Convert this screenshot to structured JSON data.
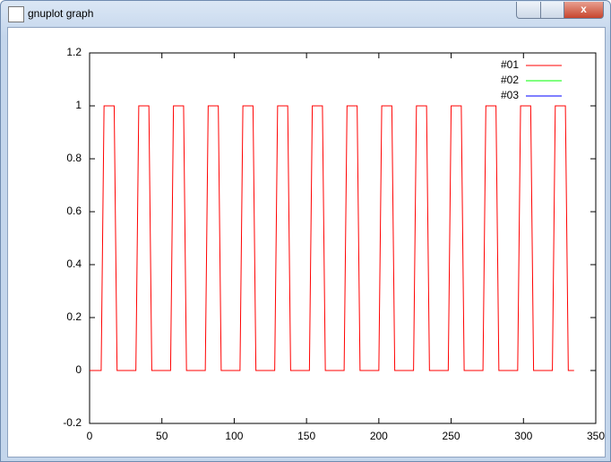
{
  "window_title": "gnuplot graph",
  "chart_data": {
    "type": "line",
    "x": [
      0,
      8,
      9,
      10,
      17,
      18,
      19,
      32,
      33,
      34,
      41,
      42,
      43,
      56,
      57,
      58,
      65,
      66,
      67,
      80,
      81,
      82,
      89,
      90,
      91,
      104,
      105,
      106,
      113,
      114,
      115,
      128,
      129,
      130,
      137,
      138,
      139,
      152,
      153,
      154,
      161,
      162,
      163,
      176,
      177,
      178,
      185,
      186,
      187,
      200,
      201,
      202,
      209,
      210,
      211,
      224,
      225,
      226,
      233,
      234,
      235,
      248,
      249,
      250,
      257,
      258,
      259,
      272,
      273,
      274,
      281,
      282,
      283,
      296,
      297,
      298,
      305,
      306,
      307,
      320,
      321,
      322,
      329,
      330,
      331,
      335
    ],
    "series": [
      {
        "name": "#01",
        "color": "#ff0000",
        "values": [
          0,
          0,
          0.5,
          1,
          1,
          0.5,
          0,
          0,
          0.5,
          1,
          1,
          0.5,
          0,
          0,
          0.5,
          1,
          1,
          0.5,
          0,
          0,
          0.5,
          1,
          1,
          0.5,
          0,
          0,
          0.5,
          1,
          1,
          0.5,
          0,
          0,
          0.5,
          1,
          1,
          0.5,
          0,
          0,
          0.5,
          1,
          1,
          0.5,
          0,
          0,
          0.5,
          1,
          1,
          0.5,
          0,
          0,
          0.5,
          1,
          1,
          0.5,
          0,
          0,
          0.5,
          1,
          1,
          0.5,
          0,
          0,
          0.5,
          1,
          1,
          0.5,
          0,
          0,
          0.5,
          1,
          1,
          0.5,
          0,
          0,
          0.5,
          1,
          1,
          0.5,
          0,
          0,
          0.5,
          1,
          1,
          0.5,
          0,
          0
        ]
      },
      {
        "name": "#02",
        "color": "#00ff00",
        "values": [
          null,
          null,
          null,
          null,
          null,
          null,
          null,
          null,
          null,
          null,
          null,
          null,
          null,
          null,
          null,
          null,
          null,
          null,
          null,
          null,
          null,
          null,
          null,
          null,
          null,
          null,
          null,
          null,
          null,
          null,
          null,
          null,
          null,
          null,
          null,
          null,
          null,
          null,
          null,
          null,
          null,
          null,
          null,
          null,
          null,
          null,
          null,
          null,
          null,
          null,
          null,
          null,
          null,
          null,
          null,
          null,
          null,
          null,
          null,
          null,
          null,
          null,
          null,
          null,
          null,
          null,
          null,
          null,
          null,
          null,
          null,
          null,
          null,
          null,
          null,
          null,
          null,
          null,
          null,
          null,
          null,
          null,
          null,
          null,
          null,
          null
        ]
      },
      {
        "name": "#03",
        "color": "#0000ff",
        "values": [
          null,
          null,
          null,
          null,
          null,
          null,
          null,
          null,
          null,
          null,
          null,
          null,
          null,
          null,
          null,
          null,
          null,
          null,
          null,
          null,
          null,
          null,
          null,
          null,
          null,
          null,
          null,
          null,
          null,
          null,
          null,
          null,
          null,
          null,
          null,
          null,
          null,
          null,
          null,
          null,
          null,
          null,
          null,
          null,
          null,
          null,
          null,
          null,
          null,
          null,
          null,
          null,
          null,
          null,
          null,
          null,
          null,
          null,
          null,
          null,
          null,
          null,
          null,
          null,
          null,
          null,
          null,
          null,
          null,
          null,
          null,
          null,
          null,
          null,
          null,
          null,
          null,
          null,
          null,
          null,
          null,
          null,
          null,
          null,
          null,
          null
        ]
      }
    ],
    "xlim": [
      0,
      350
    ],
    "xticks": [
      0,
      50,
      100,
      150,
      200,
      250,
      300,
      350
    ],
    "ylim": [
      -0.2,
      1.2
    ],
    "yticks": [
      -0.2,
      0,
      0.2,
      0.4,
      0.6,
      0.8,
      1,
      1.2
    ],
    "legend": "top-right"
  }
}
